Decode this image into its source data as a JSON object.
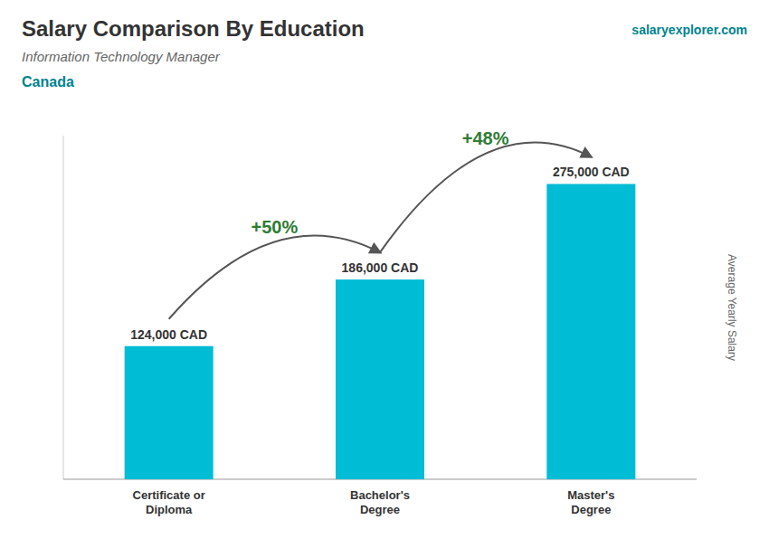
{
  "chart_data": {
    "type": "bar",
    "title": "Salary Comparison By Education",
    "subtitle": "Information Technology Manager",
    "annotations": [
      "Canada",
      "salaryexplorer.com"
    ],
    "ylabel": "Average Yearly Salary",
    "categories": [
      "Certificate or\nDiploma",
      "Bachelor's\nDegree",
      "Master's\nDegree"
    ],
    "values": [
      124000,
      186000,
      275000
    ],
    "value_labels": [
      "124,000 CAD",
      "186,000 CAD",
      "275,000 CAD"
    ],
    "change_labels": [
      "+50%",
      "+48%"
    ],
    "color": "#00bcd4",
    "ylim": [
      0,
      320000
    ],
    "data_labels": true,
    "tick_labels": "x"
  }
}
